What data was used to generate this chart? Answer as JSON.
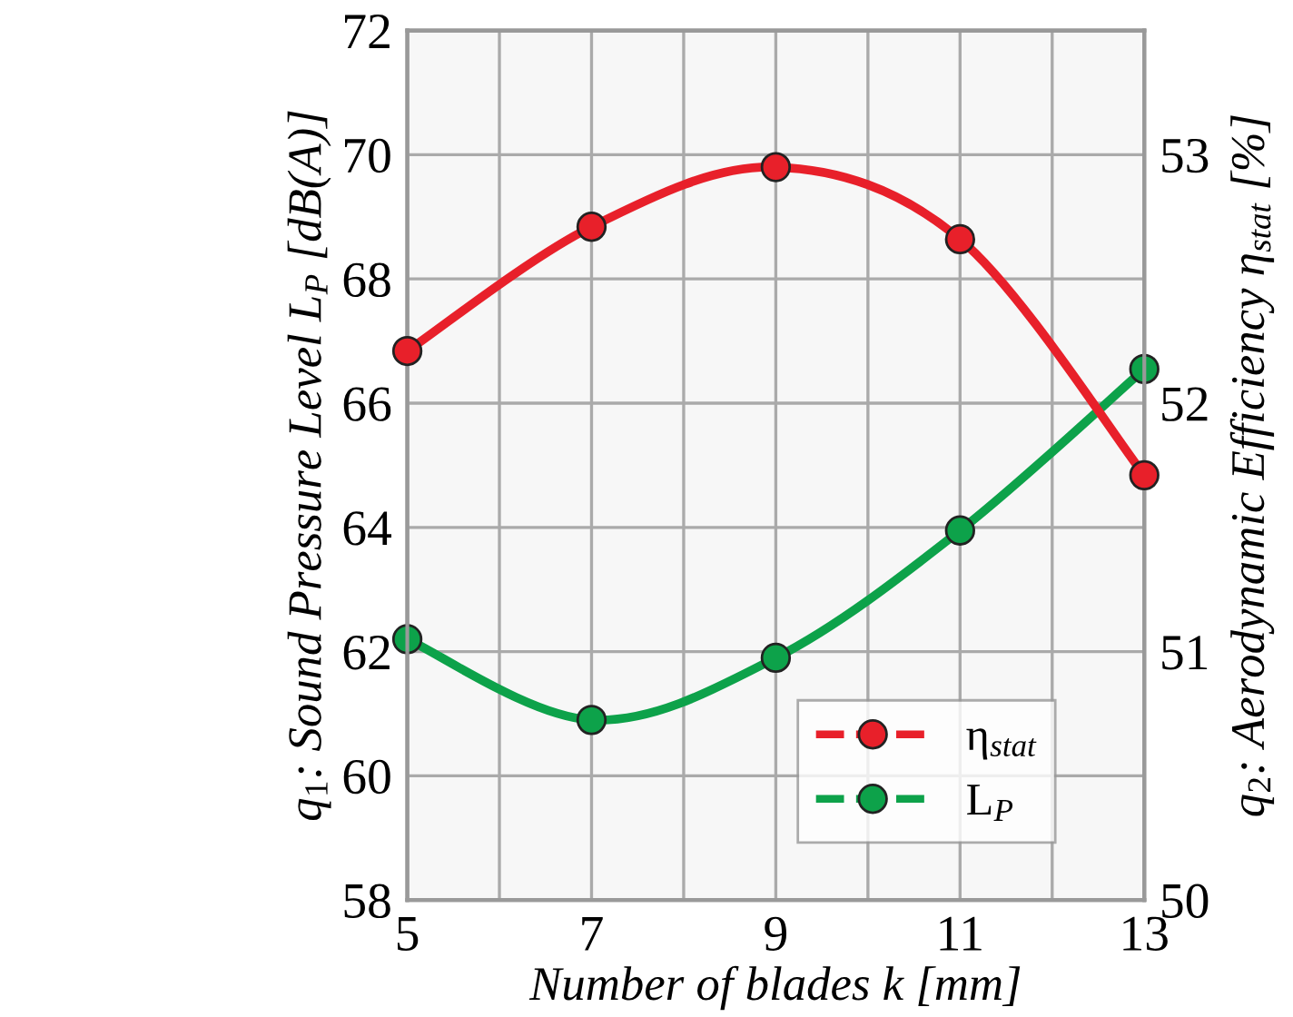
{
  "chart_data": {
    "type": "line",
    "xlabel": "Number of blades k [mm]",
    "ylabel": "q$_{1}$: Sound Pressure Level L$_{P}$ [dB(A)]",
    "y2label": "q$_{2}$: Aerodynamic Efficiency η$_{stat}$ [%]",
    "x": [
      5,
      7,
      9,
      11,
      13
    ],
    "series": [
      {
        "name": "η$_{stat}$",
        "color": "#e8202a",
        "axis": "y2",
        "values": [
          52.21,
          52.71,
          52.95,
          52.66,
          51.71
        ]
      },
      {
        "name": "L$_{P}$",
        "color": "#0da24a",
        "values": [
          62.2,
          60.9,
          61.9,
          63.95,
          66.55
        ]
      }
    ],
    "xlim": [
      5,
      13
    ],
    "xticks": [
      5,
      {
        "value": 6,
        "label": null
      },
      7,
      {
        "value": 8,
        "label": null
      },
      9,
      {
        "value": 10,
        "label": null
      },
      11,
      {
        "value": 12,
        "label": null
      },
      13
    ],
    "ylim": [
      58,
      72
    ],
    "yticks": [
      58,
      60,
      62,
      64,
      66,
      68,
      70,
      72
    ],
    "y2lim": [
      50,
      53.5
    ],
    "y2ticks": [
      50,
      51,
      52,
      53
    ],
    "grid": true,
    "legend": "bottom right",
    "marker": "circle",
    "line_style": "solid"
  }
}
